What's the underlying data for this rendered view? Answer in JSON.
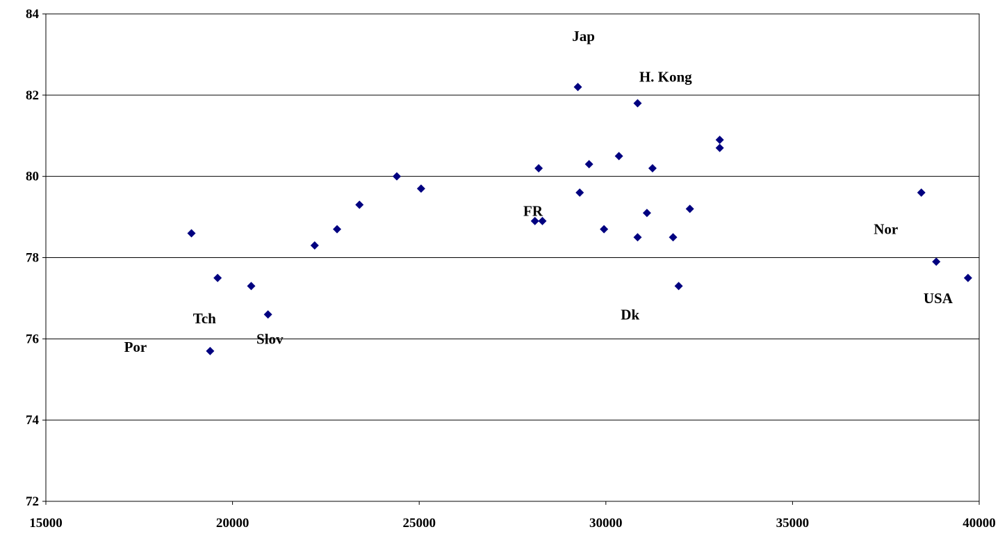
{
  "chart_data": {
    "type": "scatter",
    "title": "",
    "xlabel": "",
    "ylabel": "",
    "xlim": [
      15000,
      40000
    ],
    "ylim": [
      72,
      84
    ],
    "x_ticks": [
      "15000",
      "20000",
      "25000",
      "30000",
      "35000",
      "40000"
    ],
    "y_ticks": [
      "72",
      "74",
      "76",
      "78",
      "80",
      "82",
      "84"
    ],
    "grid": "horizontal",
    "legend": "none",
    "marker_color": "#000080",
    "points": [
      {
        "x": 18900,
        "y": 78.6
      },
      {
        "x": 19600,
        "y": 77.5
      },
      {
        "x": 19400,
        "y": 75.7
      },
      {
        "x": 20500,
        "y": 77.3
      },
      {
        "x": 20950,
        "y": 76.6
      },
      {
        "x": 22200,
        "y": 78.3
      },
      {
        "x": 22800,
        "y": 78.7
      },
      {
        "x": 23400,
        "y": 79.3
      },
      {
        "x": 24400,
        "y": 80.0
      },
      {
        "x": 25050,
        "y": 79.7
      },
      {
        "x": 28100,
        "y": 78.9
      },
      {
        "x": 28300,
        "y": 78.9
      },
      {
        "x": 28200,
        "y": 80.2
      },
      {
        "x": 29250,
        "y": 82.2
      },
      {
        "x": 29300,
        "y": 79.6
      },
      {
        "x": 29550,
        "y": 80.3
      },
      {
        "x": 29950,
        "y": 78.7
      },
      {
        "x": 30350,
        "y": 80.5
      },
      {
        "x": 30850,
        "y": 81.8
      },
      {
        "x": 30850,
        "y": 78.5
      },
      {
        "x": 31100,
        "y": 79.1
      },
      {
        "x": 31250,
        "y": 80.2
      },
      {
        "x": 31800,
        "y": 78.5
      },
      {
        "x": 31950,
        "y": 77.3
      },
      {
        "x": 32250,
        "y": 79.2
      },
      {
        "x": 33050,
        "y": 80.9
      },
      {
        "x": 33050,
        "y": 80.7
      },
      {
        "x": 38450,
        "y": 79.6
      },
      {
        "x": 38850,
        "y": 77.9
      },
      {
        "x": 39700,
        "y": 77.5
      }
    ],
    "annotations": [
      {
        "text": "Jap",
        "x": 29400,
        "y": 83.45
      },
      {
        "text": "H. Kong",
        "x": 31600,
        "y": 82.45
      },
      {
        "text": "FR",
        "x": 28050,
        "y": 79.15
      },
      {
        "text": "Nor",
        "x": 37500,
        "y": 78.7
      },
      {
        "text": "USA",
        "x": 38900,
        "y": 77.0
      },
      {
        "text": "Dk",
        "x": 30650,
        "y": 76.6
      },
      {
        "text": "Tch",
        "x": 19250,
        "y": 76.5
      },
      {
        "text": "Slov",
        "x": 21000,
        "y": 76.0
      },
      {
        "text": "Por",
        "x": 17400,
        "y": 75.8
      }
    ]
  }
}
